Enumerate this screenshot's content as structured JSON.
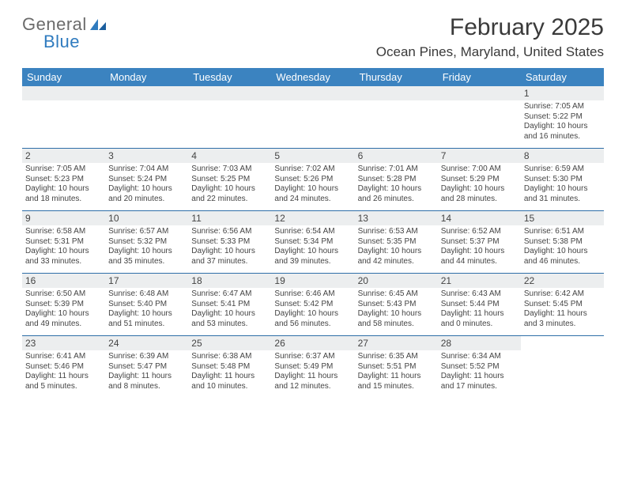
{
  "colors": {
    "header_bar": "#3b83c0",
    "header_text": "#ffffff",
    "daynum_bg": "#eceeef",
    "divider": "#2f6fa8",
    "logo_gray": "#6b6b6b",
    "logo_blue": "#2f7bbf",
    "body_text": "#444444"
  },
  "logo": {
    "text1": "General",
    "text2": "Blue"
  },
  "title": "February 2025",
  "location": "Ocean Pines, Maryland, United States",
  "day_headers": [
    "Sunday",
    "Monday",
    "Tuesday",
    "Wednesday",
    "Thursday",
    "Friday",
    "Saturday"
  ],
  "weeks": [
    [
      {
        "empty": true
      },
      {
        "empty": true
      },
      {
        "empty": true
      },
      {
        "empty": true
      },
      {
        "empty": true
      },
      {
        "empty": true
      },
      {
        "num": "1",
        "sunrise": "Sunrise: 7:05 AM",
        "sunset": "Sunset: 5:22 PM",
        "daylight": "Daylight: 10 hours and 16 minutes."
      }
    ],
    [
      {
        "num": "2",
        "sunrise": "Sunrise: 7:05 AM",
        "sunset": "Sunset: 5:23 PM",
        "daylight": "Daylight: 10 hours and 18 minutes."
      },
      {
        "num": "3",
        "sunrise": "Sunrise: 7:04 AM",
        "sunset": "Sunset: 5:24 PM",
        "daylight": "Daylight: 10 hours and 20 minutes."
      },
      {
        "num": "4",
        "sunrise": "Sunrise: 7:03 AM",
        "sunset": "Sunset: 5:25 PM",
        "daylight": "Daylight: 10 hours and 22 minutes."
      },
      {
        "num": "5",
        "sunrise": "Sunrise: 7:02 AM",
        "sunset": "Sunset: 5:26 PM",
        "daylight": "Daylight: 10 hours and 24 minutes."
      },
      {
        "num": "6",
        "sunrise": "Sunrise: 7:01 AM",
        "sunset": "Sunset: 5:28 PM",
        "daylight": "Daylight: 10 hours and 26 minutes."
      },
      {
        "num": "7",
        "sunrise": "Sunrise: 7:00 AM",
        "sunset": "Sunset: 5:29 PM",
        "daylight": "Daylight: 10 hours and 28 minutes."
      },
      {
        "num": "8",
        "sunrise": "Sunrise: 6:59 AM",
        "sunset": "Sunset: 5:30 PM",
        "daylight": "Daylight: 10 hours and 31 minutes."
      }
    ],
    [
      {
        "num": "9",
        "sunrise": "Sunrise: 6:58 AM",
        "sunset": "Sunset: 5:31 PM",
        "daylight": "Daylight: 10 hours and 33 minutes."
      },
      {
        "num": "10",
        "sunrise": "Sunrise: 6:57 AM",
        "sunset": "Sunset: 5:32 PM",
        "daylight": "Daylight: 10 hours and 35 minutes."
      },
      {
        "num": "11",
        "sunrise": "Sunrise: 6:56 AM",
        "sunset": "Sunset: 5:33 PM",
        "daylight": "Daylight: 10 hours and 37 minutes."
      },
      {
        "num": "12",
        "sunrise": "Sunrise: 6:54 AM",
        "sunset": "Sunset: 5:34 PM",
        "daylight": "Daylight: 10 hours and 39 minutes."
      },
      {
        "num": "13",
        "sunrise": "Sunrise: 6:53 AM",
        "sunset": "Sunset: 5:35 PM",
        "daylight": "Daylight: 10 hours and 42 minutes."
      },
      {
        "num": "14",
        "sunrise": "Sunrise: 6:52 AM",
        "sunset": "Sunset: 5:37 PM",
        "daylight": "Daylight: 10 hours and 44 minutes."
      },
      {
        "num": "15",
        "sunrise": "Sunrise: 6:51 AM",
        "sunset": "Sunset: 5:38 PM",
        "daylight": "Daylight: 10 hours and 46 minutes."
      }
    ],
    [
      {
        "num": "16",
        "sunrise": "Sunrise: 6:50 AM",
        "sunset": "Sunset: 5:39 PM",
        "daylight": "Daylight: 10 hours and 49 minutes."
      },
      {
        "num": "17",
        "sunrise": "Sunrise: 6:48 AM",
        "sunset": "Sunset: 5:40 PM",
        "daylight": "Daylight: 10 hours and 51 minutes."
      },
      {
        "num": "18",
        "sunrise": "Sunrise: 6:47 AM",
        "sunset": "Sunset: 5:41 PM",
        "daylight": "Daylight: 10 hours and 53 minutes."
      },
      {
        "num": "19",
        "sunrise": "Sunrise: 6:46 AM",
        "sunset": "Sunset: 5:42 PM",
        "daylight": "Daylight: 10 hours and 56 minutes."
      },
      {
        "num": "20",
        "sunrise": "Sunrise: 6:45 AM",
        "sunset": "Sunset: 5:43 PM",
        "daylight": "Daylight: 10 hours and 58 minutes."
      },
      {
        "num": "21",
        "sunrise": "Sunrise: 6:43 AM",
        "sunset": "Sunset: 5:44 PM",
        "daylight": "Daylight: 11 hours and 0 minutes."
      },
      {
        "num": "22",
        "sunrise": "Sunrise: 6:42 AM",
        "sunset": "Sunset: 5:45 PM",
        "daylight": "Daylight: 11 hours and 3 minutes."
      }
    ],
    [
      {
        "num": "23",
        "sunrise": "Sunrise: 6:41 AM",
        "sunset": "Sunset: 5:46 PM",
        "daylight": "Daylight: 11 hours and 5 minutes."
      },
      {
        "num": "24",
        "sunrise": "Sunrise: 6:39 AM",
        "sunset": "Sunset: 5:47 PM",
        "daylight": "Daylight: 11 hours and 8 minutes."
      },
      {
        "num": "25",
        "sunrise": "Sunrise: 6:38 AM",
        "sunset": "Sunset: 5:48 PM",
        "daylight": "Daylight: 11 hours and 10 minutes."
      },
      {
        "num": "26",
        "sunrise": "Sunrise: 6:37 AM",
        "sunset": "Sunset: 5:49 PM",
        "daylight": "Daylight: 11 hours and 12 minutes."
      },
      {
        "num": "27",
        "sunrise": "Sunrise: 6:35 AM",
        "sunset": "Sunset: 5:51 PM",
        "daylight": "Daylight: 11 hours and 15 minutes."
      },
      {
        "num": "28",
        "sunrise": "Sunrise: 6:34 AM",
        "sunset": "Sunset: 5:52 PM",
        "daylight": "Daylight: 11 hours and 17 minutes."
      },
      {
        "empty": true,
        "noBar": true
      }
    ]
  ]
}
